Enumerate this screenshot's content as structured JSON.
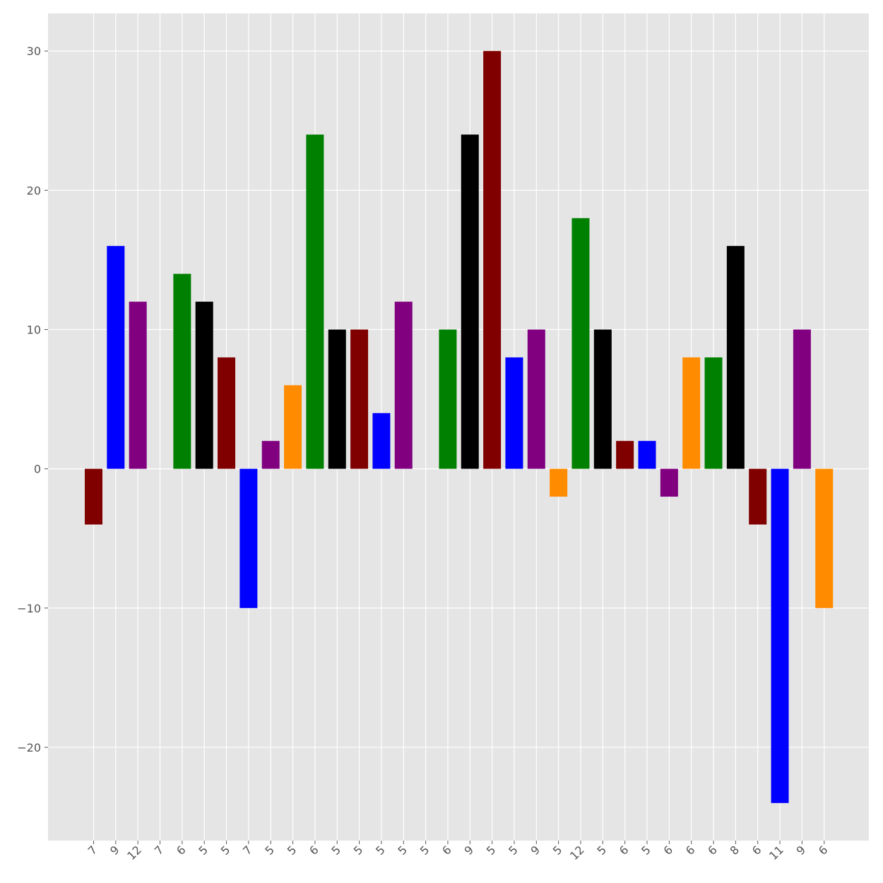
{
  "chart_data": {
    "type": "bar",
    "title": "",
    "xlabel": "",
    "ylabel": "",
    "ylim": [
      -26.7,
      32.7
    ],
    "yticks": [
      -20,
      -10,
      0,
      10,
      20,
      30
    ],
    "ytick_labels": [
      "−20",
      "−10",
      "0",
      "10",
      "20",
      "30"
    ],
    "grid": true,
    "background": "#e5e5e5",
    "categories": [
      "7",
      "9",
      "12",
      "7",
      "6",
      "5",
      "5",
      "7",
      "5",
      "5",
      "6",
      "5",
      "5",
      "5",
      "5",
      "5",
      "6",
      "9",
      "5",
      "5",
      "9",
      "5",
      "12",
      "5",
      "6",
      "5",
      "6",
      "6",
      "6",
      "8",
      "6",
      "11",
      "9",
      "6"
    ],
    "values": [
      -4,
      16,
      12,
      0,
      14,
      12,
      8,
      -10,
      2,
      6,
      24,
      10,
      10,
      4,
      12,
      0,
      10,
      24,
      30,
      8,
      10,
      -2,
      18,
      10,
      2,
      2,
      -2,
      8,
      8,
      16,
      -4,
      -24,
      10,
      -10
    ],
    "colors": [
      "#800000",
      "#0000ff",
      "#800080",
      "#ff8c00",
      "#008000",
      "#000000",
      "#800000",
      "#0000ff",
      "#800080",
      "#ff8c00",
      "#008000",
      "#000000",
      "#800000",
      "#0000ff",
      "#800080",
      "#ff8c00",
      "#008000",
      "#000000",
      "#800000",
      "#0000ff",
      "#800080",
      "#ff8c00",
      "#008000",
      "#000000",
      "#800000",
      "#0000ff",
      "#800080",
      "#ff8c00",
      "#008000",
      "#000000",
      "#800000",
      "#0000ff",
      "#800080",
      "#ff8c00"
    ]
  }
}
